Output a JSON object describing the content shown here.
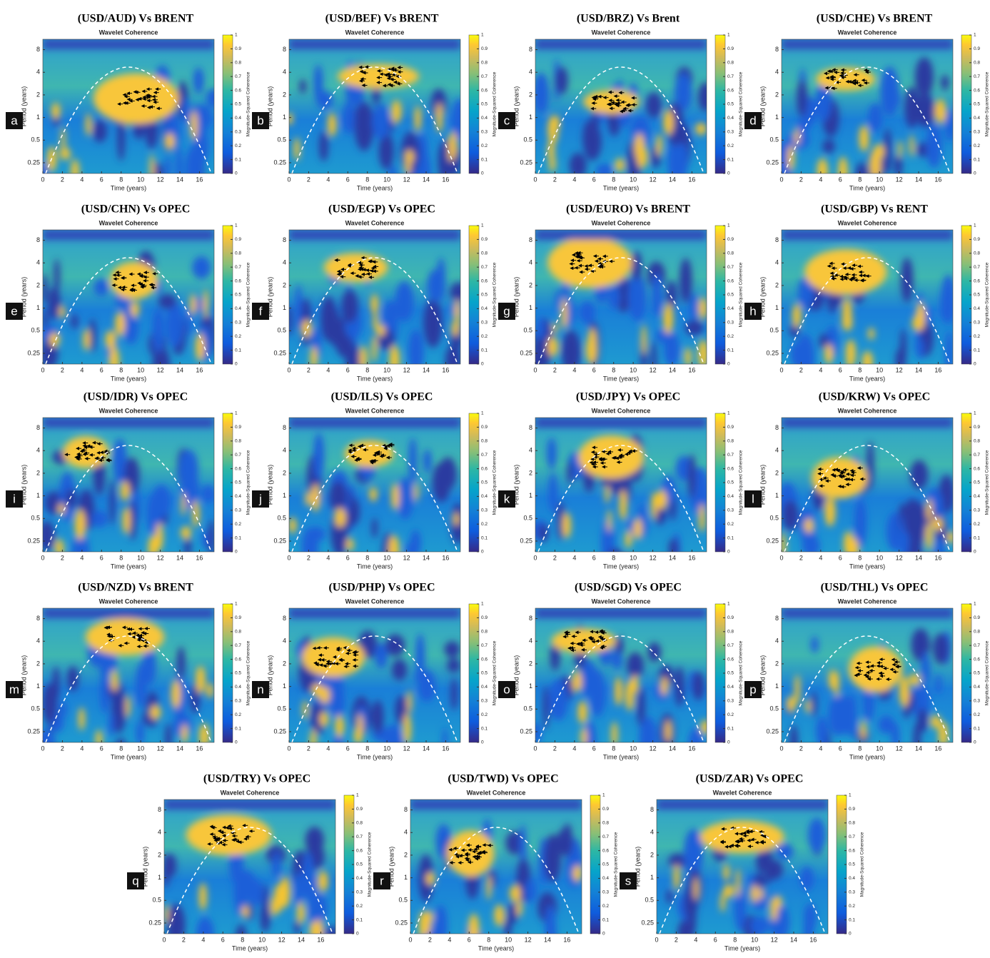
{
  "common": {
    "subtitle": "Wavelet Coherence",
    "xlabel": "Time (years)",
    "ylabel": "Period (years)",
    "colorbar_label": "Magnitude-Squared Coherence",
    "xlim": [
      0,
      17.5
    ],
    "xticks": [
      0,
      2,
      4,
      6,
      8,
      10,
      12,
      14,
      16
    ],
    "ylim": [
      0.18,
      11
    ],
    "yticks": [
      0.25,
      0.5,
      1,
      2,
      4,
      8
    ],
    "log_y": true,
    "clim": [
      0,
      1
    ],
    "cticks": [
      0,
      0.1,
      0.2,
      0.3,
      0.4,
      0.5,
      0.6,
      0.7,
      0.8,
      0.9,
      1
    ]
  },
  "panels": [
    {
      "letter": "a",
      "title": "(USD/AUD) Vs BRENT"
    },
    {
      "letter": "b",
      "title": "(USD/BEF) Vs BRENT"
    },
    {
      "letter": "c",
      "title": "(USD/BRZ) Vs Brent"
    },
    {
      "letter": "d",
      "title": "(USD/CHE) Vs BRENT"
    },
    {
      "letter": "e",
      "title": "(USD/CHN) Vs OPEC"
    },
    {
      "letter": "f",
      "title": "(USD/EGP) Vs OPEC"
    },
    {
      "letter": "g",
      "title": "(USD/EURO) Vs BRENT"
    },
    {
      "letter": "h",
      "title": "(USD/GBP) Vs RENT"
    },
    {
      "letter": "i",
      "title": "(USD/IDR) Vs OPEC"
    },
    {
      "letter": "j",
      "title": "(USD/ILS) Vs OPEC"
    },
    {
      "letter": "k",
      "title": "(USD/JPY) Vs OPEC"
    },
    {
      "letter": "l",
      "title": "(USD/KRW) Vs OPEC"
    },
    {
      "letter": "m",
      "title": "(USD/NZD) Vs BRENT"
    },
    {
      "letter": "n",
      "title": "(USD/PHP) Vs OPEC"
    },
    {
      "letter": "o",
      "title": "(USD/SGD) Vs OPEC"
    },
    {
      "letter": "p",
      "title": "(USD/THL) Vs OPEC"
    },
    {
      "letter": "q",
      "title": "(USD/TRY) Vs OPEC"
    },
    {
      "letter": "r",
      "title": "(USD/TWD) Vs OPEC"
    },
    {
      "letter": "s",
      "title": "(USD/ZAR) Vs OPEC"
    }
  ]
}
